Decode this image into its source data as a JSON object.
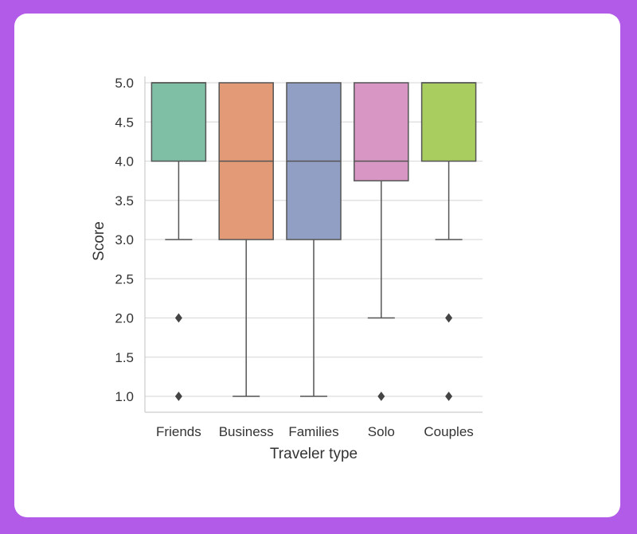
{
  "chart_data": {
    "type": "box",
    "xlabel": "Traveler type",
    "ylabel": "Score",
    "ylim": [
      0.8,
      5.0
    ],
    "yticks": [
      "5.0",
      "4.5",
      "4.0",
      "3.5",
      "3.0",
      "2.5",
      "2.0",
      "1.5",
      "1.0"
    ],
    "grid": "horizontal",
    "categories": [
      "Friends",
      "Business",
      "Families",
      "Solo",
      "Couples"
    ],
    "colors": [
      "#7fbfa6",
      "#e39a77",
      "#929fc4",
      "#d796c3",
      "#aacd60"
    ],
    "boxes": [
      {
        "name": "Friends",
        "whisker_low": 3.0,
        "q1": 4.0,
        "median": 5.0,
        "q3": 5.0,
        "whisker_high": 5.0,
        "outliers": [
          2.0,
          1.0
        ]
      },
      {
        "name": "Business",
        "whisker_low": 1.0,
        "q1": 3.0,
        "median": 4.0,
        "q3": 5.0,
        "whisker_high": 5.0,
        "outliers": []
      },
      {
        "name": "Families",
        "whisker_low": 1.0,
        "q1": 3.0,
        "median": 4.0,
        "q3": 5.0,
        "whisker_high": 5.0,
        "outliers": []
      },
      {
        "name": "Solo",
        "whisker_low": 2.0,
        "q1": 3.75,
        "median": 4.0,
        "q3": 5.0,
        "whisker_high": 5.0,
        "outliers": [
          1.0
        ]
      },
      {
        "name": "Couples",
        "whisker_low": 3.0,
        "q1": 4.0,
        "median": 5.0,
        "q3": 5.0,
        "whisker_high": 5.0,
        "outliers": [
          2.0,
          1.0
        ]
      }
    ]
  }
}
